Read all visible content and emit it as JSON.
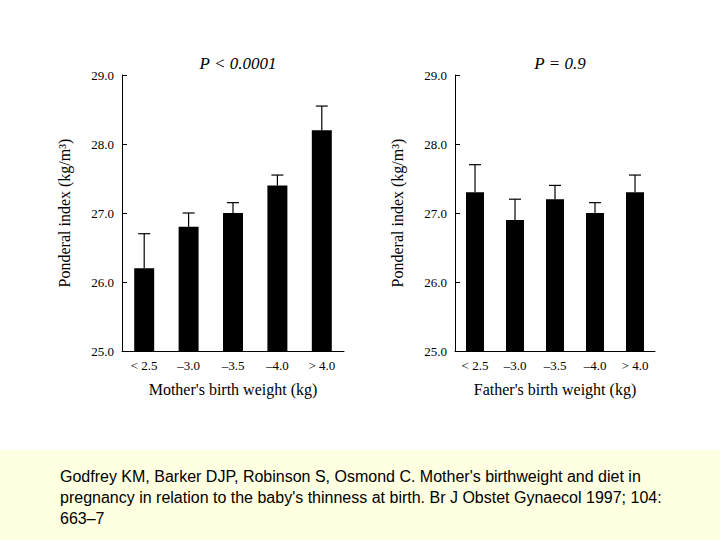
{
  "chart_data": [
    {
      "type": "bar",
      "title": "P < 0.0001",
      "x_label": "Mother's birth weight (kg)",
      "y_label": "Ponderal index (kg/m³)",
      "categories": [
        "< 2.5",
        "–3.0",
        "–3.5",
        "–4.0",
        "> 4.0"
      ],
      "values": [
        26.2,
        26.8,
        27.0,
        27.4,
        28.2
      ],
      "errors": [
        0.5,
        0.2,
        0.15,
        0.15,
        0.35
      ],
      "color": "#000000",
      "ylim": [
        25,
        29
      ],
      "yticks": [
        {
          "value": 25,
          "label": "25.0"
        },
        {
          "value": 26,
          "label": "26.0"
        },
        {
          "value": 27,
          "label": "27.0"
        },
        {
          "value": 28,
          "label": "28.0"
        },
        {
          "value": 29,
          "label": "29.0"
        }
      ],
      "grid": false
    },
    {
      "type": "bar",
      "title": "P = 0.9",
      "x_label": "Father's birth weight (kg)",
      "y_label": "Ponderal index (kg/m³)",
      "categories": [
        "< 2.5",
        "–3.0",
        "–3.5",
        "–4.0",
        "> 4.0"
      ],
      "values": [
        27.3,
        26.9,
        27.2,
        27.0,
        27.3
      ],
      "errors": [
        0.4,
        0.3,
        0.2,
        0.15,
        0.25
      ],
      "color": "#000000",
      "ylim": [
        25,
        29
      ],
      "yticks": [
        {
          "value": 25,
          "label": "25.0"
        },
        {
          "value": 26,
          "label": "26.0"
        },
        {
          "value": 27,
          "label": "27.0"
        },
        {
          "value": 28,
          "label": "28.0"
        },
        {
          "value": 29,
          "label": "29.0"
        }
      ],
      "grid": false
    }
  ],
  "citation": "Godfrey KM, Barker DJP, Robinson S, Osmond C. Mother's birthweight and diet in pregnancy in relation to the baby's thinness at birth. Br J Obstet Gynaecol 1997; 104: 663–7"
}
